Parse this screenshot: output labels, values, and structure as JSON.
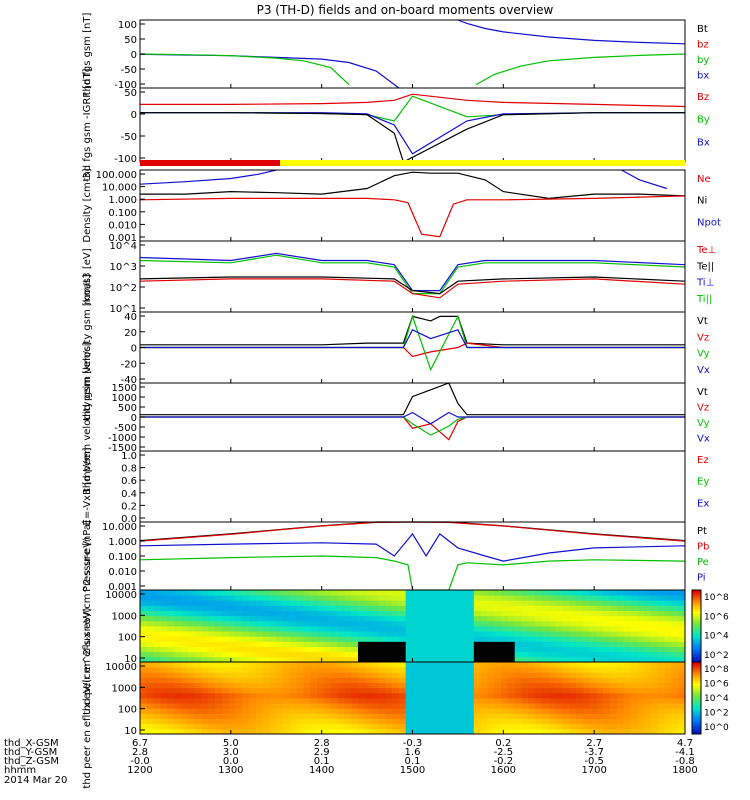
{
  "title": "P3 (TH-D) fields and on-board moments overview",
  "colors": {
    "black": "#000000",
    "red": "#e00000",
    "green": "#00c000",
    "blue": "#1010d0",
    "yellow": "#ffff00"
  },
  "footer": {
    "rows": [
      {
        "label": "thd_X-GSM",
        "values": [
          "6.7",
          "5.0",
          "2.8",
          "-0.3",
          "0.2",
          "2.7",
          "4.7"
        ]
      },
      {
        "label": "thd_Y-GSM",
        "values": [
          "2.8",
          "3.0",
          "2.9",
          "1.6",
          "-2.5",
          "-3.7",
          "-4.1"
        ]
      },
      {
        "label": "thd_Z-GSM",
        "values": [
          "-0.0",
          "0.0",
          "0.1",
          "0.1",
          "-0.2",
          "-0.5",
          "-0.8"
        ]
      },
      {
        "label": "hhmm",
        "values": [
          "1200",
          "1300",
          "1400",
          "1500",
          "1600",
          "1700",
          "1800"
        ]
      }
    ],
    "date": "2014 Mar 20"
  },
  "chart_data": [
    {
      "type": "line",
      "ylabel": "thd fgs gsm [nT]",
      "ylim": [
        -100,
        100
      ],
      "ticks": [
        "100",
        "50",
        "0",
        "-50",
        "-100"
      ],
      "legend": [
        {
          "name": "Bt",
          "color": "#000000"
        },
        {
          "name": "bz",
          "color": "#e00000"
        },
        {
          "name": "by",
          "color": "#00c000"
        },
        {
          "name": "bx",
          "color": "#1010d0"
        }
      ],
      "x_hours": [
        12,
        13,
        14,
        15,
        16,
        17,
        18
      ],
      "series": [
        {
          "name": "bx",
          "color": "#1010d0",
          "x": [
            12.0,
            12.5,
            13.0,
            13.5,
            14.0,
            14.3,
            14.6,
            14.85
          ],
          "y": [
            -1,
            -3,
            -5,
            -10,
            -15,
            -25,
            -50,
            -100
          ]
        },
        {
          "name": "bx",
          "color": "#1010d0",
          "x": [
            15.5,
            15.6,
            15.8,
            16.0,
            16.5,
            17.0,
            17.5,
            18.0
          ],
          "y": [
            100,
            90,
            75,
            65,
            50,
            40,
            34,
            30
          ]
        },
        {
          "name": "by",
          "color": "#00c000",
          "x": [
            12.0,
            12.5,
            13.0,
            13.5,
            13.8,
            14.1,
            14.3
          ],
          "y": [
            0,
            -2,
            -5,
            -12,
            -20,
            -40,
            -90
          ]
        },
        {
          "name": "by",
          "color": "#00c000",
          "x": [
            15.7,
            15.9,
            16.2,
            16.5,
            17.0,
            17.5,
            18.0
          ],
          "y": [
            -90,
            -60,
            -35,
            -20,
            -10,
            -4,
            0
          ]
        }
      ]
    },
    {
      "type": "line",
      "ylabel": "thd fgs gsm -IGRF [nT]",
      "ylim": [
        -120,
        60
      ],
      "ticks": [
        "50",
        "0",
        "-50",
        "-100"
      ],
      "legend": [
        {
          "name": "Bz",
          "color": "#e00000"
        },
        {
          "name": "By",
          "color": "#00c000"
        },
        {
          "name": "Bx",
          "color": "#1010d0"
        }
      ],
      "series": [
        {
          "name": "Bz",
          "color": "#e00000",
          "x": [
            12.0,
            13.0,
            14.0,
            14.5,
            14.8,
            15.0,
            15.6,
            16.0,
            17.0,
            18.0
          ],
          "y": [
            20,
            20,
            22,
            25,
            30,
            45,
            30,
            25,
            20,
            15
          ]
        },
        {
          "name": "By",
          "color": "#00c000",
          "x": [
            12.0,
            13.0,
            14.0,
            14.5,
            14.8,
            15.0,
            15.6,
            16.0,
            17.0,
            18.0
          ],
          "y": [
            0,
            0,
            -2,
            -5,
            -20,
            40,
            -10,
            -5,
            0,
            0
          ]
        },
        {
          "name": "Bx",
          "color": "#1010d0",
          "x": [
            12.0,
            13.0,
            14.0,
            14.5,
            14.8,
            15.0,
            15.6,
            16.0,
            17.0,
            18.0
          ],
          "y": [
            0,
            0,
            0,
            -3,
            -30,
            -100,
            -20,
            -3,
            0,
            0
          ]
        },
        {
          "name": "Bt",
          "color": "#000000",
          "x": [
            12.0,
            13.0,
            14.0,
            14.5,
            14.8,
            14.9,
            15.6,
            16.0,
            17.0,
            18.0
          ],
          "y": [
            0,
            0,
            -2,
            -5,
            -50,
            -120,
            -40,
            -5,
            0,
            0
          ]
        }
      ]
    },
    {
      "type": "line",
      "ylabel": "Density [cm-3]",
      "yscale": "log",
      "ylim": [
        0.001,
        100
      ],
      "ticks": [
        "100.000",
        "10.000",
        "1.000",
        "0.100",
        "0.010",
        "0.001"
      ],
      "legend": [
        {
          "name": "Ne",
          "color": "#e00000"
        },
        {
          "name": "Ni",
          "color": "#000000"
        },
        {
          "name": "Npot",
          "color": "#1010d0"
        }
      ],
      "series": [
        {
          "name": "Ni",
          "color": "#000000",
          "x": [
            12.0,
            12.5,
            13.0,
            13.5,
            14.0,
            14.5,
            14.8,
            15.0,
            15.2,
            15.5,
            15.8,
            16.0,
            16.5,
            17.0,
            17.5,
            18.0
          ],
          "y": [
            2,
            2,
            3,
            2.5,
            2,
            5,
            40,
            70,
            60,
            60,
            20,
            3,
            1,
            2,
            2,
            1.5
          ]
        },
        {
          "name": "Ne",
          "color": "#e00000",
          "x": [
            12.0,
            13.0,
            14.0,
            14.5,
            14.8,
            14.95,
            15.1,
            15.3,
            15.45,
            15.6,
            16.0,
            17.0,
            18.0
          ],
          "y": [
            0.8,
            1,
            1,
            1,
            0.8,
            0.5,
            0.003,
            0.002,
            0.4,
            0.8,
            0.8,
            1,
            1.5
          ]
        },
        {
          "name": "Npot",
          "color": "#1010d0",
          "x": [
            12.0,
            12.5,
            13.0,
            13.3,
            13.5
          ],
          "y": [
            10,
            15,
            25,
            50,
            100
          ]
        },
        {
          "name": "Npot",
          "color": "#1010d0",
          "x": [
            17.3,
            17.5,
            17.8
          ],
          "y": [
            100,
            20,
            5
          ]
        }
      ]
    },
    {
      "type": "line",
      "ylabel": "moat3 [eV]",
      "yscale": "log",
      "ylim": [
        10,
        10000
      ],
      "ticks": [
        "10^4",
        "10^3",
        "10^2",
        "10^1"
      ],
      "legend": [
        {
          "name": "Te⊥",
          "color": "#e00000"
        },
        {
          "name": "Te||",
          "color": "#000000"
        },
        {
          "name": "Ti⊥",
          "color": "#1010d0"
        },
        {
          "name": "Ti||",
          "color": "#00c000"
        }
      ],
      "series": [
        {
          "name": "Ti⊥",
          "color": "#1010d0",
          "x": [
            12.0,
            13.0,
            13.5,
            14.0,
            14.5,
            14.8,
            15.0,
            15.3,
            15.5,
            15.8,
            16.0,
            17.0,
            18.0
          ],
          "y": [
            2000,
            1500,
            3000,
            1500,
            1500,
            1000,
            80,
            80,
            1000,
            1500,
            1500,
            1500,
            1000
          ]
        },
        {
          "name": "Ti||",
          "color": "#00c000",
          "x": [
            12.0,
            13.0,
            13.5,
            14.0,
            14.5,
            14.8,
            15.0,
            15.3,
            15.5,
            15.8,
            16.0,
            17.0,
            18.0
          ],
          "y": [
            1500,
            1200,
            2500,
            1200,
            1200,
            800,
            60,
            60,
            800,
            1200,
            1200,
            1200,
            800
          ]
        },
        {
          "name": "Te⊥",
          "color": "#e00000",
          "x": [
            12.0,
            13.0,
            14.0,
            14.8,
            15.0,
            15.3,
            15.5,
            16.0,
            17.0,
            18.0
          ],
          "y": [
            200,
            250,
            250,
            200,
            60,
            40,
            150,
            200,
            250,
            150
          ]
        },
        {
          "name": "Te||",
          "color": "#000000",
          "x": [
            12.0,
            13.0,
            14.0,
            14.8,
            15.0,
            15.3,
            15.5,
            16.0,
            17.0,
            18.0
          ],
          "y": [
            250,
            300,
            300,
            250,
            80,
            60,
            200,
            250,
            300,
            200
          ]
        }
      ]
    },
    {
      "type": "line",
      "ylabel": "thd peim velocity gsm [km/s]",
      "ylim": [
        -40,
        40
      ],
      "ticks": [
        "40",
        "20",
        "0",
        "-20",
        "-40"
      ],
      "legend": [
        {
          "name": "Vt",
          "color": "#000000"
        },
        {
          "name": "Vz",
          "color": "#e00000"
        },
        {
          "name": "Vy",
          "color": "#00c000"
        },
        {
          "name": "Vx",
          "color": "#1010d0"
        }
      ],
      "series": [
        {
          "name": "Vt",
          "color": "#000000",
          "x": [
            12.0,
            13.0,
            14.0,
            14.5,
            14.9,
            15.0,
            15.2,
            15.3,
            15.5,
            15.6,
            16.0,
            17.0,
            18.0
          ],
          "y": [
            3,
            3,
            3,
            5,
            5,
            35,
            30,
            35,
            35,
            5,
            3,
            3,
            3
          ]
        },
        {
          "name": "Vz",
          "color": "#e00000",
          "x": [
            12.0,
            14.0,
            14.9,
            15.0,
            15.2,
            15.5,
            15.6,
            16.0,
            18.0
          ],
          "y": [
            0,
            0,
            0,
            -10,
            -5,
            0,
            5,
            0,
            0
          ]
        },
        {
          "name": "Vy",
          "color": "#00c000",
          "x": [
            12.0,
            14.0,
            14.9,
            15.0,
            15.2,
            15.5,
            15.6,
            16.0,
            18.0
          ],
          "y": [
            0,
            0,
            0,
            35,
            -25,
            35,
            0,
            0,
            0
          ]
        },
        {
          "name": "Vx",
          "color": "#1010d0",
          "x": [
            12.0,
            14.0,
            14.9,
            15.0,
            15.2,
            15.5,
            15.6,
            16.0,
            18.0
          ],
          "y": [
            0,
            0,
            0,
            20,
            10,
            20,
            0,
            0,
            0
          ]
        }
      ]
    },
    {
      "type": "line",
      "ylabel": "thd peem velocity gsm [km/s]",
      "ylim": [
        -1500,
        1500
      ],
      "ticks": [
        "1500",
        "1000",
        "500",
        "0",
        "-500",
        "-1000",
        "-1500"
      ],
      "legend": [
        {
          "name": "Vt",
          "color": "#000000"
        },
        {
          "name": "Vz",
          "color": "#e00000"
        },
        {
          "name": "Vy",
          "color": "#00c000"
        },
        {
          "name": "Vx",
          "color": "#1010d0"
        }
      ],
      "series": [
        {
          "name": "Vt",
          "color": "#000000",
          "x": [
            12.0,
            14.0,
            14.9,
            15.0,
            15.2,
            15.4,
            15.5,
            15.6,
            16.0,
            18.0
          ],
          "y": [
            100,
            100,
            100,
            900,
            1200,
            1500,
            600,
            100,
            100,
            100
          ]
        },
        {
          "name": "Vz",
          "color": "#e00000",
          "x": [
            12.0,
            14.0,
            14.9,
            15.0,
            15.2,
            15.4,
            15.5,
            15.6,
            16.0,
            18.0
          ],
          "y": [
            0,
            0,
            0,
            -500,
            -300,
            -1000,
            -200,
            0,
            0,
            0
          ]
        },
        {
          "name": "Vy",
          "color": "#00c000",
          "x": [
            12.0,
            14.0,
            14.9,
            15.0,
            15.2,
            15.4,
            15.5,
            15.6,
            16.0,
            18.0
          ],
          "y": [
            0,
            0,
            0,
            -300,
            -800,
            -400,
            -100,
            0,
            0,
            0
          ]
        },
        {
          "name": "Vx",
          "color": "#1010d0",
          "x": [
            12.0,
            14.0,
            14.9,
            15.0,
            15.2,
            15.4,
            15.5,
            15.6,
            16.0,
            18.0
          ],
          "y": [
            0,
            0,
            0,
            200,
            -300,
            200,
            0,
            0,
            0,
            0
          ]
        }
      ]
    },
    {
      "type": "line",
      "ylabel": "E=-VxB [mV/m]",
      "ylim": [
        0,
        1
      ],
      "ticks": [
        "1.0",
        "0.8",
        "0.6",
        "0.4",
        "0.2",
        "0.0"
      ],
      "legend": [
        {
          "name": "Ez",
          "color": "#e00000"
        },
        {
          "name": "Ey",
          "color": "#00c000"
        },
        {
          "name": "Ex",
          "color": "#1010d0"
        }
      ],
      "series": []
    },
    {
      "type": "line",
      "ylabel": "Pressure [nPa]",
      "yscale": "log",
      "ylim": [
        0.001,
        10
      ],
      "ticks": [
        "10.000",
        "1.000",
        "0.100",
        "0.010",
        "0.001"
      ],
      "legend": [
        {
          "name": "Pt",
          "color": "#000000"
        },
        {
          "name": "Pb",
          "color": "#e00000"
        },
        {
          "name": "Pe",
          "color": "#00c000"
        },
        {
          "name": "Pi",
          "color": "#1010d0"
        }
      ],
      "series": [
        {
          "name": "Pt",
          "color": "#000000",
          "x": [
            12.0,
            13.0,
            14.0,
            14.6,
            15.0,
            15.4,
            16.0,
            17.0,
            18.0
          ],
          "y": [
            0.8,
            2,
            6,
            10,
            12,
            10,
            6,
            2,
            0.8
          ]
        },
        {
          "name": "Pb",
          "color": "#e00000",
          "x": [
            12.0,
            13.0,
            14.0,
            14.6,
            15.0,
            15.4,
            16.0,
            17.0,
            18.0
          ],
          "y": [
            0.75,
            1.9,
            5.8,
            9.5,
            11,
            9.5,
            5.8,
            1.9,
            0.75
          ]
        },
        {
          "name": "Pi",
          "color": "#1010d0",
          "x": [
            12.0,
            13.0,
            14.0,
            14.6,
            14.8,
            15.0,
            15.15,
            15.3,
            15.5,
            15.8,
            16.0,
            16.5,
            17.0,
            18.0
          ],
          "y": [
            0.4,
            0.5,
            0.6,
            0.5,
            0.1,
            2,
            0.1,
            2,
            0.3,
            0.1,
            0.05,
            0.15,
            0.3,
            0.4
          ]
        },
        {
          "name": "Pe",
          "color": "#00c000",
          "x": [
            12.0,
            13.0,
            14.0,
            14.6,
            14.8,
            14.95,
            15.0,
            15.4,
            15.5,
            15.6,
            16.0,
            16.5,
            17.0,
            18.0
          ],
          "y": [
            0.06,
            0.08,
            0.1,
            0.08,
            0.05,
            0.03,
            0.001,
            0.001,
            0.03,
            0.04,
            0.03,
            0.05,
            0.06,
            0.05
          ]
        }
      ]
    },
    {
      "type": "heatmap",
      "ylabel": "thd peir en eflux eV/(cm^2-s-sr-eV)",
      "yscale": "log",
      "ylim": [
        5,
        20000
      ],
      "ticks": [
        "10000",
        "1000",
        "100",
        "10"
      ],
      "colorbar": [
        "10^8",
        "10^6",
        "10^4",
        "10^2"
      ]
    },
    {
      "type": "heatmap",
      "ylabel": "thd peer en eflux eV/(cm^2-s-sr-eV)",
      "yscale": "log",
      "ylim": [
        5,
        20000
      ],
      "ticks": [
        "10000",
        "1000",
        "100",
        "10"
      ],
      "colorbar": [
        "10^8",
        "10^6",
        "10^4",
        "10^2",
        "10^0"
      ]
    }
  ]
}
